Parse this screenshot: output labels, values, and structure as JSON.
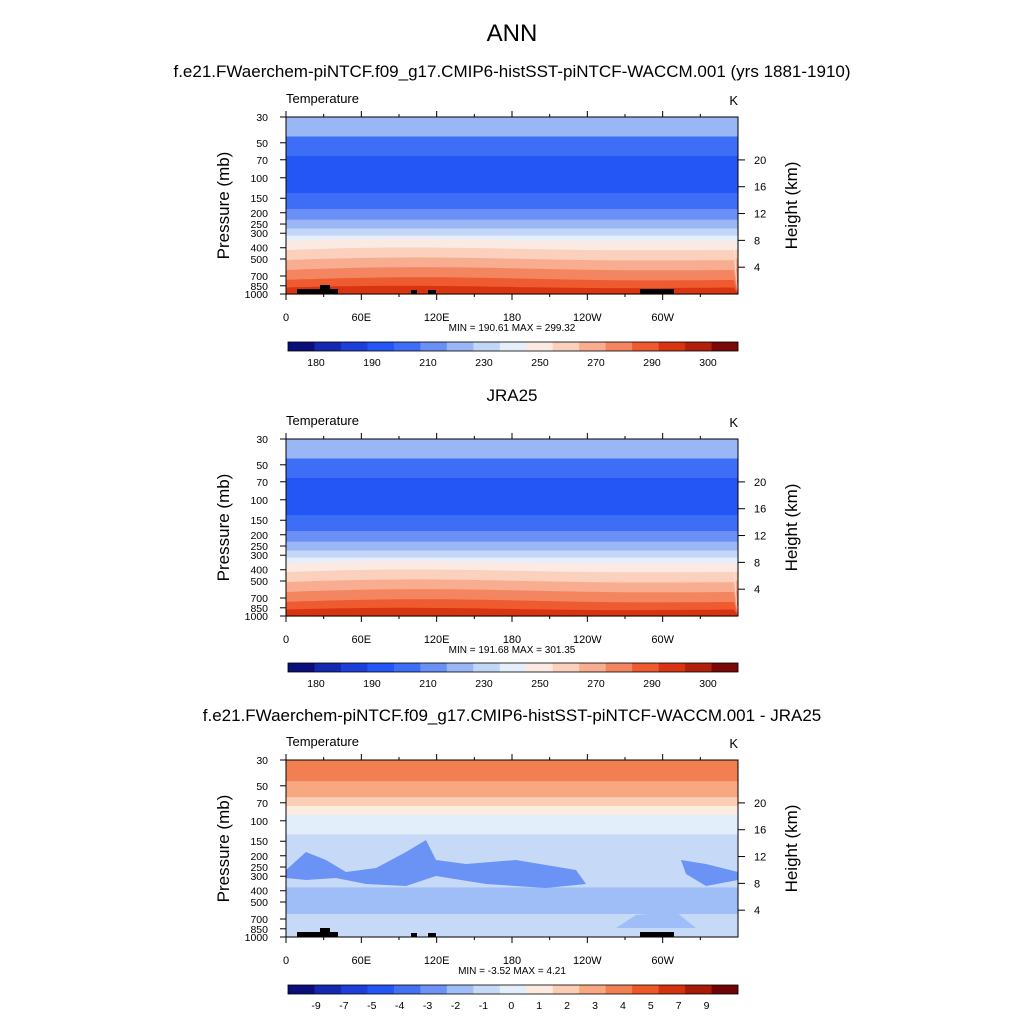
{
  "page": {
    "title": "ANN",
    "panel_titles": [
      "f.e21.FWaerchem-piNTCF.f09_g17.CMIP6-histSST-piNTCF-WACCM.001 (yrs 1881-1910)",
      "JRA25",
      "f.e21.FWaerchem-piNTCF.f09_g17.CMIP6-histSST-piNTCF-WACCM.001 - JRA25"
    ]
  },
  "colors": {
    "abs_scale": [
      "#0b0f7a",
      "#1428b0",
      "#1b3fd8",
      "#2456f5",
      "#3f6ef6",
      "#6a90f5",
      "#9ab6f5",
      "#c2d6f8",
      "#e6eef9",
      "#fbeae3",
      "#fbd0bc",
      "#f8ad90",
      "#f38660",
      "#ee5b31",
      "#d93412",
      "#b0200c",
      "#7a0806"
    ],
    "diff_scale": [
      "#0b0f7a",
      "#1428b0",
      "#1b3fd8",
      "#2456f5",
      "#4471f3",
      "#6b93f5",
      "#9fbdf6",
      "#c6daf8",
      "#e3eefb",
      "#fdebe0",
      "#fbcdb4",
      "#f8a880",
      "#f27f52",
      "#ec5828",
      "#d4320e",
      "#a81b06",
      "#700404"
    ],
    "topography": "#000000"
  },
  "chart_data": [
    {
      "type": "heatmap",
      "title": "f.e21.FWaerchem-piNTCF.f09_g17.CMIP6-histSST-piNTCF-WACCM.001 (yrs 1881-1910)",
      "left_label": "Temperature",
      "right_label": "K",
      "ylabel": "Pressure (mb)",
      "y2label": "Height (km)",
      "x_ticks": [
        "0",
        "60E",
        "120E",
        "180",
        "120W",
        "60W"
      ],
      "y_ticks": [
        "30",
        "50",
        "70",
        "100",
        "150",
        "200",
        "250",
        "300",
        "400",
        "500",
        "700",
        "850",
        "1000"
      ],
      "y2_ticks": [
        "20",
        "16",
        "12",
        "8",
        "4"
      ],
      "stats": "MIN = 190.61  MAX = 299.32",
      "colorbar_labels": [
        "180",
        "190",
        "210",
        "230",
        "250",
        "270",
        "290",
        "300"
      ],
      "ylim": [
        1000,
        30
      ],
      "xlim": [
        0,
        360
      ]
    },
    {
      "type": "heatmap",
      "title": "JRA25",
      "left_label": "Temperature",
      "right_label": "K",
      "ylabel": "Pressure (mb)",
      "y2label": "Height (km)",
      "x_ticks": [
        "0",
        "60E",
        "120E",
        "180",
        "120W",
        "60W"
      ],
      "y_ticks": [
        "30",
        "50",
        "70",
        "100",
        "150",
        "200",
        "250",
        "300",
        "400",
        "500",
        "700",
        "850",
        "1000"
      ],
      "y2_ticks": [
        "20",
        "16",
        "12",
        "8",
        "4"
      ],
      "stats": "MIN = 191.68  MAX = 301.35",
      "colorbar_labels": [
        "180",
        "190",
        "210",
        "230",
        "250",
        "270",
        "290",
        "300"
      ],
      "ylim": [
        1000,
        30
      ],
      "xlim": [
        0,
        360
      ]
    },
    {
      "type": "heatmap",
      "title": "f.e21.FWaerchem-piNTCF.f09_g17.CMIP6-histSST-piNTCF-WACCM.001 - JRA25",
      "left_label": "Temperature",
      "right_label": "K",
      "ylabel": "Pressure (mb)",
      "y2label": "Height (km)",
      "x_ticks": [
        "0",
        "60E",
        "120E",
        "180",
        "120W",
        "60W"
      ],
      "y_ticks": [
        "30",
        "50",
        "70",
        "100",
        "150",
        "200",
        "250",
        "300",
        "400",
        "500",
        "700",
        "850",
        "1000"
      ],
      "y2_ticks": [
        "20",
        "16",
        "12",
        "8",
        "4"
      ],
      "stats": "MIN =  -3.52  MAX =   4.21",
      "colorbar_labels": [
        "-9",
        "-7",
        "-5",
        "-4",
        "-3",
        "-2",
        "-1",
        "0",
        "1",
        "2",
        "3",
        "4",
        "5",
        "7",
        "9"
      ],
      "ylim": [
        1000,
        30
      ],
      "xlim": [
        0,
        360
      ]
    }
  ]
}
